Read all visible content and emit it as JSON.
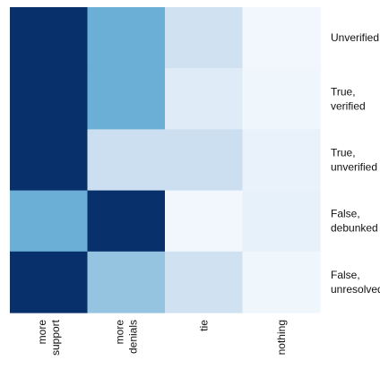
{
  "chart_data": {
    "type": "heatmap",
    "x_labels": [
      [
        "more",
        "support"
      ],
      [
        "more",
        "denials"
      ],
      [
        "tie"
      ],
      [
        "nothing"
      ]
    ],
    "y_labels": [
      [
        "Unverified"
      ],
      [
        "True,",
        "verified"
      ],
      [
        "True,",
        "unverified"
      ],
      [
        "False,",
        "debunked"
      ],
      [
        "False,",
        "unresolved"
      ]
    ],
    "values": [
      [
        1.0,
        0.5,
        0.2,
        0.03
      ],
      [
        1.0,
        0.5,
        0.12,
        0.04
      ],
      [
        1.0,
        0.22,
        0.22,
        0.07
      ],
      [
        0.5,
        1.0,
        0.03,
        0.08
      ],
      [
        1.0,
        0.4,
        0.2,
        0.04
      ]
    ],
    "colormap": "Blues",
    "colorbar": false,
    "grid": false
  }
}
